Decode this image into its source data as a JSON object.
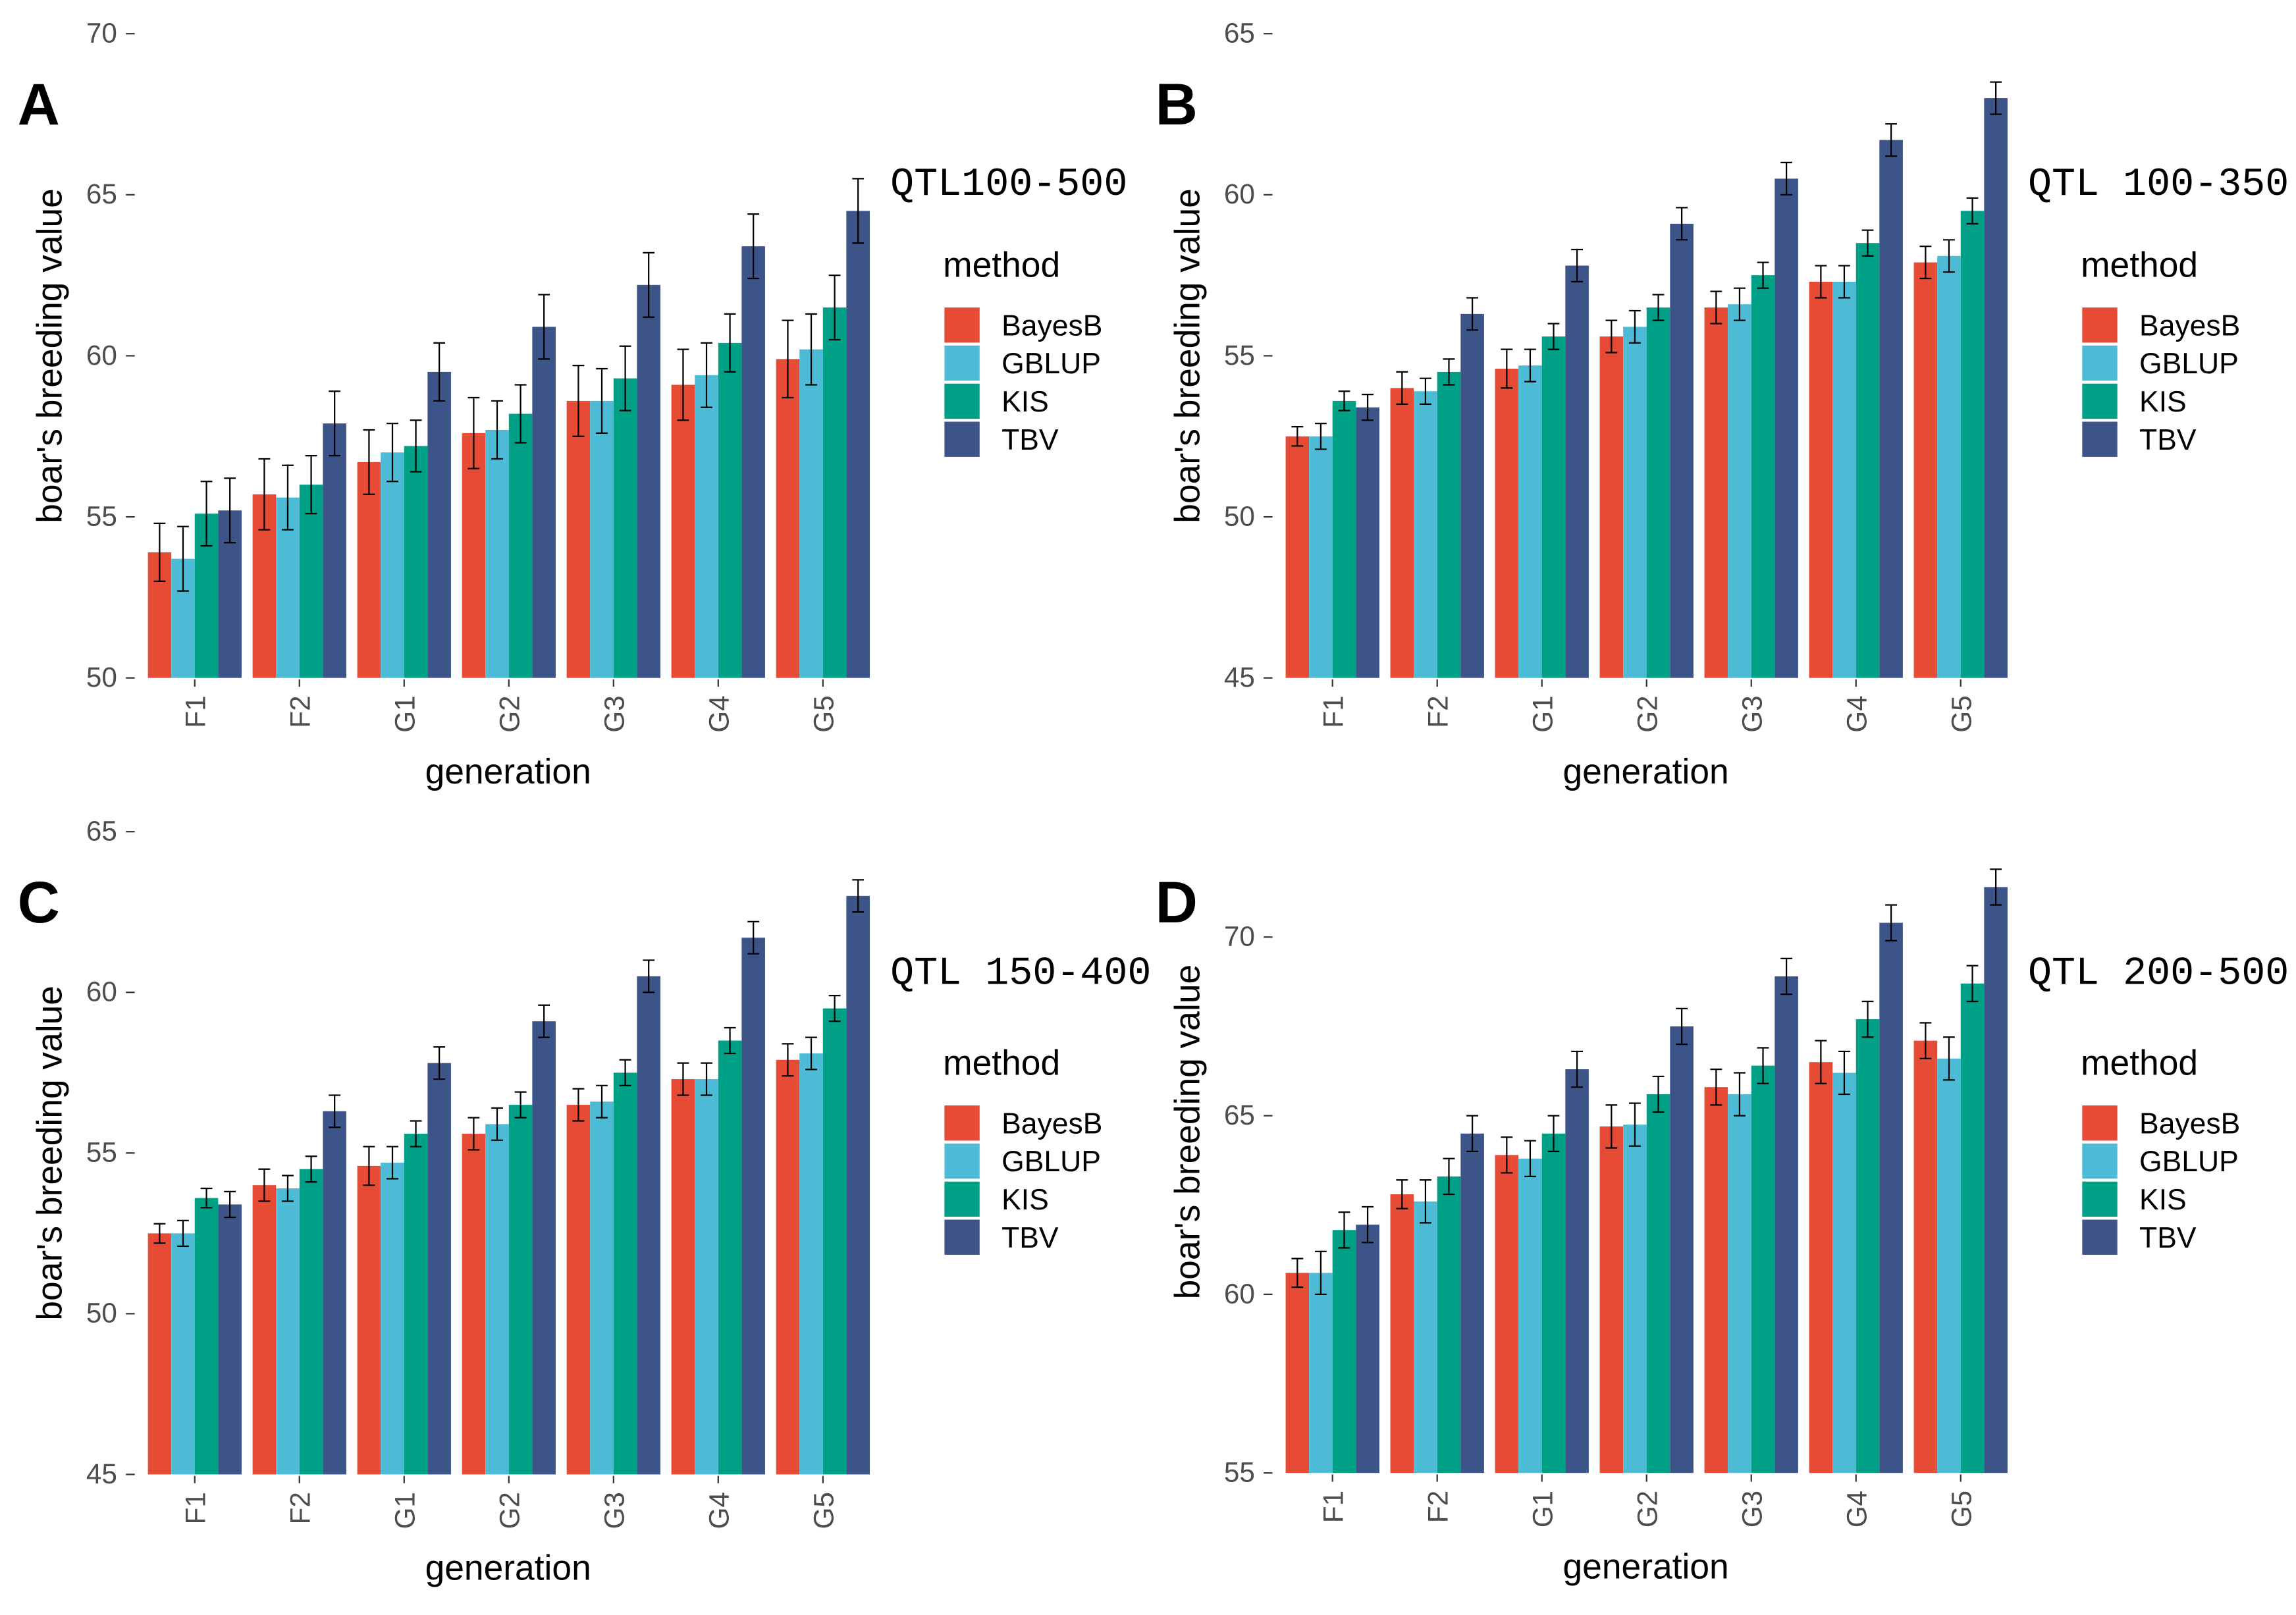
{
  "chart_data": [
    {
      "type": "bar",
      "panel": "A",
      "title": "QTL100-500",
      "xlabel": "generation",
      "ylabel": "boar's breeding value",
      "ylim": [
        50,
        70
      ],
      "yticks": [
        50,
        55,
        60,
        65,
        70
      ],
      "categories": [
        "F1",
        "F2",
        "G1",
        "G2",
        "G3",
        "G4",
        "G5"
      ],
      "legend_title": "method",
      "legend_position": "right",
      "series": [
        {
          "name": "BayesB",
          "color": "#E64B35",
          "values": [
            53.9,
            55.7,
            56.7,
            57.6,
            58.6,
            59.1,
            59.9
          ],
          "errors": [
            0.9,
            1.1,
            1.0,
            1.1,
            1.1,
            1.1,
            1.2
          ]
        },
        {
          "name": "GBLUP",
          "color": "#4DBBD5",
          "values": [
            53.7,
            55.6,
            57.0,
            57.7,
            58.6,
            59.4,
            60.2
          ],
          "errors": [
            1.0,
            1.0,
            0.9,
            0.9,
            1.0,
            1.0,
            1.1
          ]
        },
        {
          "name": "KIS",
          "color": "#00A087",
          "values": [
            55.1,
            56.0,
            57.2,
            58.2,
            59.3,
            60.4,
            61.5
          ],
          "errors": [
            1.0,
            0.9,
            0.8,
            0.9,
            1.0,
            0.9,
            1.0
          ]
        },
        {
          "name": "TBV",
          "color": "#3C5488",
          "values": [
            55.2,
            57.9,
            59.5,
            60.9,
            62.2,
            63.4,
            64.5
          ],
          "errors": [
            1.0,
            1.0,
            0.9,
            1.0,
            1.0,
            1.0,
            1.0
          ]
        }
      ]
    },
    {
      "type": "bar",
      "panel": "B",
      "title": "QTL 100-350",
      "xlabel": "generation",
      "ylabel": "boar's breeding value",
      "ylim": [
        45,
        65
      ],
      "yticks": [
        45,
        50,
        55,
        60,
        65
      ],
      "categories": [
        "F1",
        "F2",
        "G1",
        "G2",
        "G3",
        "G4",
        "G5"
      ],
      "legend_title": "method",
      "legend_position": "right",
      "series": [
        {
          "name": "BayesB",
          "color": "#E64B35",
          "values": [
            52.5,
            54.0,
            54.6,
            55.6,
            56.5,
            57.3,
            57.9
          ],
          "errors": [
            0.3,
            0.5,
            0.6,
            0.5,
            0.5,
            0.5,
            0.5
          ]
        },
        {
          "name": "GBLUP",
          "color": "#4DBBD5",
          "values": [
            52.5,
            53.9,
            54.7,
            55.9,
            56.6,
            57.3,
            58.1
          ],
          "errors": [
            0.4,
            0.4,
            0.5,
            0.5,
            0.5,
            0.5,
            0.5
          ]
        },
        {
          "name": "KIS",
          "color": "#00A087",
          "values": [
            53.6,
            54.5,
            55.6,
            56.5,
            57.5,
            58.5,
            59.5
          ],
          "errors": [
            0.3,
            0.4,
            0.4,
            0.4,
            0.4,
            0.4,
            0.4
          ]
        },
        {
          "name": "TBV",
          "color": "#3C5488",
          "values": [
            53.4,
            56.3,
            57.8,
            59.1,
            60.5,
            61.7,
            63.0
          ],
          "errors": [
            0.4,
            0.5,
            0.5,
            0.5,
            0.5,
            0.5,
            0.5
          ]
        }
      ]
    },
    {
      "type": "bar",
      "panel": "C",
      "title": "QTL 150-400",
      "xlabel": "generation",
      "ylabel": "boar's breeding value",
      "ylim": [
        45,
        65
      ],
      "yticks": [
        45,
        50,
        55,
        60,
        65
      ],
      "categories": [
        "F1",
        "F2",
        "G1",
        "G2",
        "G3",
        "G4",
        "G5"
      ],
      "legend_title": "method",
      "legend_position": "right",
      "series": [
        {
          "name": "BayesB",
          "color": "#E64B35",
          "values": [
            52.5,
            54.0,
            54.6,
            55.6,
            56.5,
            57.3,
            57.9
          ],
          "errors": [
            0.3,
            0.5,
            0.6,
            0.5,
            0.5,
            0.5,
            0.5
          ]
        },
        {
          "name": "GBLUP",
          "color": "#4DBBD5",
          "values": [
            52.5,
            53.9,
            54.7,
            55.9,
            56.6,
            57.3,
            58.1
          ],
          "errors": [
            0.4,
            0.4,
            0.5,
            0.5,
            0.5,
            0.5,
            0.5
          ]
        },
        {
          "name": "KIS",
          "color": "#00A087",
          "values": [
            53.6,
            54.5,
            55.6,
            56.5,
            57.5,
            58.5,
            59.5
          ],
          "errors": [
            0.3,
            0.4,
            0.4,
            0.4,
            0.4,
            0.4,
            0.4
          ]
        },
        {
          "name": "TBV",
          "color": "#3C5488",
          "values": [
            53.4,
            56.3,
            57.8,
            59.1,
            60.5,
            61.7,
            63.0
          ],
          "errors": [
            0.4,
            0.5,
            0.5,
            0.5,
            0.5,
            0.5,
            0.5
          ]
        }
      ]
    },
    {
      "type": "bar",
      "panel": "D",
      "title": "QTL 200-500",
      "xlabel": "generation",
      "ylabel": "boar's breeding value",
      "ylim": [
        55,
        72
      ],
      "yticks": [
        55,
        60,
        65,
        70
      ],
      "categories": [
        "F1",
        "F2",
        "G1",
        "G2",
        "G3",
        "G4",
        "G5"
      ],
      "legend_title": "method",
      "legend_position": "right",
      "series": [
        {
          "name": "BayesB",
          "color": "#E64B35",
          "values": [
            60.6,
            62.8,
            63.9,
            64.7,
            65.8,
            66.5,
            67.1
          ],
          "errors": [
            0.4,
            0.4,
            0.5,
            0.6,
            0.5,
            0.6,
            0.5
          ]
        },
        {
          "name": "GBLUP",
          "color": "#4DBBD5",
          "values": [
            60.6,
            62.6,
            63.8,
            64.75,
            65.6,
            66.2,
            66.6
          ],
          "errors": [
            0.6,
            0.6,
            0.5,
            0.6,
            0.6,
            0.6,
            0.6
          ]
        },
        {
          "name": "KIS",
          "color": "#00A087",
          "values": [
            61.8,
            63.3,
            64.5,
            65.6,
            66.4,
            67.7,
            68.7
          ],
          "errors": [
            0.5,
            0.5,
            0.5,
            0.5,
            0.5,
            0.5,
            0.5
          ]
        },
        {
          "name": "TBV",
          "color": "#3C5488",
          "values": [
            61.95,
            64.5,
            66.3,
            67.5,
            68.9,
            70.4,
            71.4
          ],
          "errors": [
            0.5,
            0.5,
            0.5,
            0.5,
            0.5,
            0.5,
            0.5
          ]
        }
      ]
    }
  ]
}
